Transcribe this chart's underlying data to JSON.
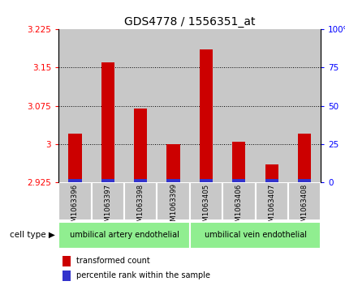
{
  "title": "GDS4778 / 1556351_at",
  "samples": [
    "GSM1063396",
    "GSM1063397",
    "GSM1063398",
    "GSM1063399",
    "GSM1063405",
    "GSM1063406",
    "GSM1063407",
    "GSM1063408"
  ],
  "red_values": [
    3.02,
    3.16,
    3.07,
    3.0,
    3.185,
    3.005,
    2.96,
    3.02
  ],
  "baseline": 2.925,
  "ylim_left": [
    2.925,
    3.225
  ],
  "ylim_right": [
    0,
    100
  ],
  "yticks_left": [
    2.925,
    3.0,
    3.075,
    3.15,
    3.225
  ],
  "yticks_right": [
    0,
    25,
    50,
    75,
    100
  ],
  "ytick_labels_left": [
    "2.925",
    "3",
    "3.075",
    "3.15",
    "3.225"
  ],
  "ytick_labels_right": [
    "0",
    "25",
    "50",
    "75",
    "100%"
  ],
  "cell_types": [
    "umbilical artery endothelial",
    "umbilical vein endothelial"
  ],
  "cell_type_ranges": [
    [
      0,
      4
    ],
    [
      4,
      8
    ]
  ],
  "bar_color": "#CC0000",
  "blue_color": "#3333CC",
  "bg_color": "#C8C8C8",
  "green_color": "#90EE90",
  "legend_red": "transformed count",
  "legend_blue": "percentile rank within the sample",
  "title_fontsize": 10,
  "tick_fontsize": 7.5,
  "sample_fontsize": 6.2
}
